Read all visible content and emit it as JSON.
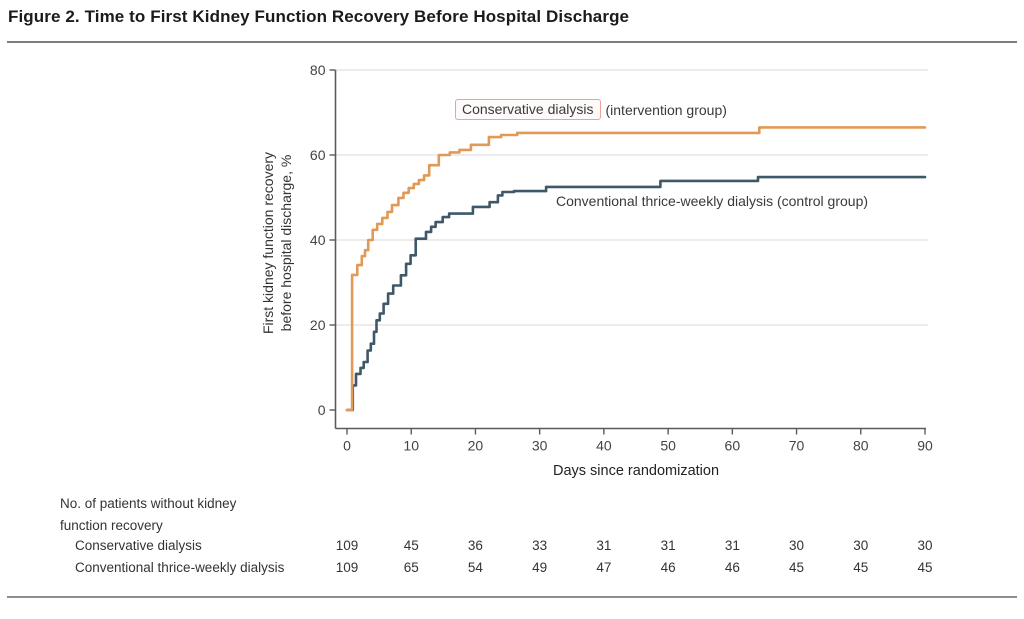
{
  "figure": {
    "title": "Figure 2. Time to First Kidney Function Recovery Before Hospital Discharge"
  },
  "chart_data": {
    "type": "line",
    "subtype": "step-after",
    "xlabel": "Days since randomization",
    "ylabel_lines": [
      "First kidney function recovery",
      "before hospital discharge, %"
    ],
    "xlim": [
      0,
      90
    ],
    "ylim": [
      0,
      80
    ],
    "x_ticks": [
      0,
      10,
      20,
      30,
      40,
      50,
      60,
      70,
      80,
      90
    ],
    "y_ticks": [
      0,
      20,
      40,
      60,
      80
    ],
    "grid": "horizontal gridlines at 20, 40, 60, 80",
    "legend_position": "inline annotations on curves",
    "series": [
      {
        "id": "conservative-curve",
        "name": "Conservative dialysis (intervention group)",
        "color": "#e19a56",
        "points": [
          [
            0,
            0
          ],
          [
            0.8,
            31.8
          ],
          [
            1.6,
            34.1
          ],
          [
            2.3,
            36.2
          ],
          [
            2.8,
            37.6
          ],
          [
            3.3,
            40.0
          ],
          [
            4.0,
            42.4
          ],
          [
            4.7,
            43.8
          ],
          [
            5.5,
            45.2
          ],
          [
            6.3,
            46.6
          ],
          [
            7.0,
            48.2
          ],
          [
            8.0,
            49.9
          ],
          [
            8.8,
            51.1
          ],
          [
            9.6,
            52.2
          ],
          [
            10.4,
            53.2
          ],
          [
            11.2,
            54.1
          ],
          [
            12.0,
            55.2
          ],
          [
            12.8,
            57.6
          ],
          [
            14.3,
            60.0
          ],
          [
            16.0,
            60.6
          ],
          [
            17.5,
            61.2
          ],
          [
            19.3,
            62.4
          ],
          [
            22.1,
            64.2
          ],
          [
            24.0,
            64.7
          ],
          [
            26.5,
            65.2
          ],
          [
            64.2,
            66.5
          ],
          [
            90,
            66.5
          ]
        ]
      },
      {
        "id": "conventional-curve",
        "name": "Conventional thrice-weekly dialysis (control group)",
        "color": "#3f5868",
        "points": [
          [
            0,
            0
          ],
          [
            0.9,
            5.8
          ],
          [
            1.4,
            8.5
          ],
          [
            2.1,
            9.9
          ],
          [
            2.6,
            11.3
          ],
          [
            3.2,
            14.0
          ],
          [
            3.7,
            15.6
          ],
          [
            4.2,
            18.4
          ],
          [
            4.6,
            21.1
          ],
          [
            5.1,
            22.7
          ],
          [
            5.7,
            25.0
          ],
          [
            6.4,
            27.4
          ],
          [
            7.2,
            29.3
          ],
          [
            8.4,
            31.7
          ],
          [
            9.2,
            34.4
          ],
          [
            9.9,
            36.4
          ],
          [
            10.7,
            40.3
          ],
          [
            12.3,
            41.9
          ],
          [
            13.1,
            43.1
          ],
          [
            13.8,
            44.2
          ],
          [
            14.9,
            45.4
          ],
          [
            15.9,
            46.2
          ],
          [
            19.6,
            47.8
          ],
          [
            22.2,
            48.9
          ],
          [
            23.5,
            50.5
          ],
          [
            24.2,
            51.3
          ],
          [
            26.0,
            51.5
          ],
          [
            31.0,
            52.5
          ],
          [
            48.8,
            53.9
          ],
          [
            64.0,
            54.8
          ],
          [
            90,
            54.8
          ]
        ]
      }
    ],
    "annotations": [
      {
        "boxed_text": "Conservative dialysis",
        "suffix": "(intervention group)",
        "box_color": "#efa196"
      },
      {
        "text": "Conventional thrice-weekly dialysis (control group)"
      }
    ]
  },
  "risk_table": {
    "header_line1": "No. of patients without kidney",
    "header_line2": "function recovery",
    "days": [
      0,
      10,
      20,
      30,
      40,
      50,
      60,
      70,
      80,
      90
    ],
    "rows": [
      {
        "label": "Conservative dialysis",
        "values": [
          109,
          45,
          36,
          33,
          31,
          31,
          31,
          30,
          30,
          30
        ]
      },
      {
        "label": "Conventional thrice-weekly dialysis",
        "values": [
          109,
          65,
          54,
          49,
          47,
          46,
          46,
          45,
          45,
          45
        ]
      }
    ]
  },
  "colors": {
    "conservative": "#e19a56",
    "conventional": "#3f5868",
    "annotation_box": "#efa196",
    "gridline": "#e6e6e6",
    "axis": "#5a5a5a",
    "tick_label": "#444444",
    "rule": "#7d7d7d"
  }
}
